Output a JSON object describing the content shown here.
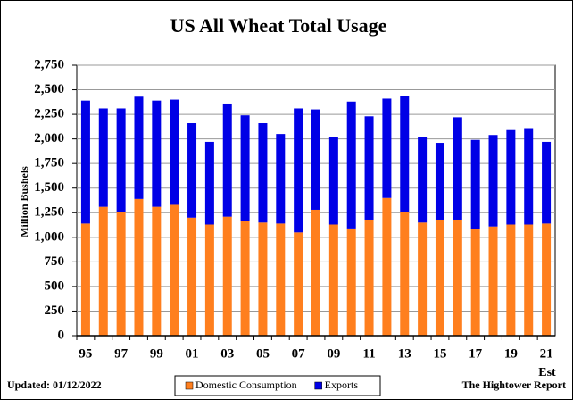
{
  "chart_data": {
    "type": "stacked_bar",
    "title": "US All Wheat Total Usage",
    "y_label": "Million Bushels",
    "categories": [
      "95",
      null,
      "97",
      null,
      "99",
      null,
      "01",
      null,
      "03",
      null,
      "05",
      null,
      "07",
      null,
      "09",
      null,
      "11",
      null,
      "13",
      null,
      "15",
      null,
      "17",
      null,
      "19",
      null,
      "21"
    ],
    "series": [
      {
        "name": "Domestic Consumption",
        "color": "#ff7f1e",
        "values": [
          1140,
          1310,
          1260,
          1390,
          1310,
          1330,
          1200,
          1130,
          1210,
          1170,
          1150,
          1140,
          1050,
          1280,
          1130,
          1090,
          1180,
          1400,
          1260,
          1150,
          1180,
          1180,
          1080,
          1110,
          1130,
          1130,
          1140
        ]
      },
      {
        "name": "Exports",
        "color": "#0000e6",
        "values": [
          1250,
          1000,
          1050,
          1040,
          1080,
          1070,
          960,
          840,
          1150,
          1070,
          1010,
          910,
          1260,
          1020,
          890,
          1290,
          1050,
          1010,
          1180,
          870,
          780,
          1040,
          910,
          930,
          960,
          980,
          830
        ]
      }
    ],
    "ylim": [
      0,
      2750
    ],
    "yticks": [
      0,
      250,
      500,
      750,
      {
        "value": 1000,
        "label": "1,000"
      },
      {
        "value": 1250,
        "label": "1,250"
      },
      {
        "value": 1500,
        "label": "1,500"
      },
      {
        "value": 1750,
        "label": "1,750"
      },
      {
        "value": 2000,
        "label": "2,000"
      },
      {
        "value": 2250,
        "label": "2,250"
      },
      {
        "value": 2500,
        "label": "2,500"
      },
      {
        "value": 2750,
        "label": "2,750"
      }
    ],
    "grid": true,
    "annotations": {
      "estimate": "Est",
      "updated": "Updated:  01/12/2022",
      "source": "The Hightower Report"
    },
    "legend": "bottom"
  }
}
